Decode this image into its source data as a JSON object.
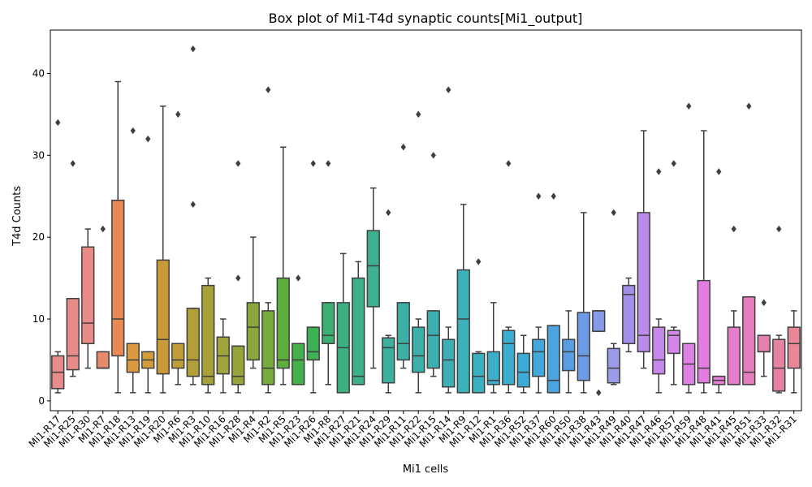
{
  "chart_data": {
    "type": "box",
    "title": "Box plot of Mi1-T4d synaptic counts[Mi1_output]",
    "xlabel": "Mi1 cells",
    "ylabel": "T4d Counts",
    "ylim": [
      -1.2,
      45.3
    ],
    "yticks": [
      0,
      10,
      20,
      30,
      40
    ],
    "grid": false,
    "categories": [
      "Mi1-R17",
      "Mi1-R25",
      "Mi1-R30",
      "Mi1-R7",
      "Mi1-R18",
      "Mi1-R13",
      "Mi1-R19",
      "Mi1-R20",
      "Mi1-R6",
      "Mi1-R3",
      "Mi1-R10",
      "Mi1-R16",
      "Mi1-R28",
      "Mi1-R4",
      "Mi1-R2",
      "Mi1-R5",
      "Mi1-R23",
      "Mi1-R26",
      "Mi1-R8",
      "Mi1-R27",
      "Mi1-R21",
      "Mi1-R24",
      "Mi1-R29",
      "Mi1-R11",
      "Mi1-R22",
      "Mi1-R15",
      "Mi1-R14",
      "Mi1-R9",
      "Mi1-R12",
      "Mi1-R1",
      "Mi1-R36",
      "Mi1-R52",
      "Mi1-R37",
      "Mi1-R60",
      "Mi1-R50",
      "Mi1-R38",
      "Mi1-R43",
      "Mi1-R49",
      "Mi1-R40",
      "Mi1-R47",
      "Mi1-R46",
      "Mi1-R57",
      "Mi1-R59",
      "Mi1-R48",
      "Mi1-R41",
      "Mi1-R45",
      "Mi1-R51",
      "Mi1-R33",
      "Mi1-R32",
      "Mi1-R31"
    ],
    "colors": [
      "#e98b8b",
      "#e88c8a",
      "#e98c87",
      "#e78a6b",
      "#e68a55",
      "#dc9a40",
      "#d29c3a",
      "#c89a3a",
      "#bf9e3a",
      "#b39f37",
      "#a8a138",
      "#a0a43d",
      "#97a43c",
      "#8ba63b",
      "#74ab3b",
      "#5dae3b",
      "#45b14d",
      "#3eb055",
      "#3cb072",
      "#3bb081",
      "#3bb089",
      "#3cb091",
      "#3cb09c",
      "#3cb0a4",
      "#3cb0aa",
      "#3cb0b0",
      "#3cb0b5",
      "#3cb0bb",
      "#3cb0c0",
      "#3cafc8",
      "#3cadcf",
      "#3cabd5",
      "#42a8db",
      "#4ba3df",
      "#579ee3",
      "#6e9be6",
      "#869be8",
      "#9b9be9",
      "#a48ee8",
      "#b98bea",
      "#c689ea",
      "#d286e9",
      "#dd82e4",
      "#e47de2",
      "#e77cd8",
      "#e67ecb",
      "#e57fbb",
      "#e581ae",
      "#e683a1",
      "#e78797"
    ],
    "boxes": [
      {
        "min": 1,
        "q1": 1.5,
        "median": 3.5,
        "q3": 5.5,
        "max": 6,
        "outliers": [
          34
        ]
      },
      {
        "min": 3,
        "q1": 3.8,
        "median": 5.5,
        "q3": 12.5,
        "max": 12.5,
        "outliers": [
          29
        ]
      },
      {
        "min": 4,
        "q1": 7,
        "median": 9.5,
        "q3": 18.8,
        "max": 21,
        "outliers": []
      },
      {
        "min": 4,
        "q1": 4,
        "median": 4,
        "q3": 6,
        "max": 6,
        "outliers": [
          21
        ]
      },
      {
        "min": 1,
        "q1": 5.5,
        "median": 10,
        "q3": 24.5,
        "max": 39,
        "outliers": []
      },
      {
        "min": 1,
        "q1": 3.5,
        "median": 5,
        "q3": 7,
        "max": 7,
        "outliers": [
          33
        ]
      },
      {
        "min": 1,
        "q1": 4,
        "median": 5,
        "q3": 6,
        "max": 6,
        "outliers": [
          32
        ]
      },
      {
        "min": 1,
        "q1": 3.3,
        "median": 7.5,
        "q3": 17.2,
        "max": 36,
        "outliers": []
      },
      {
        "min": 2,
        "q1": 4,
        "median": 5,
        "q3": 7,
        "max": 7,
        "outliers": [
          35
        ]
      },
      {
        "min": 2,
        "q1": 3,
        "median": 5,
        "q3": 11.3,
        "max": 11.3,
        "outliers": [
          43,
          24
        ]
      },
      {
        "min": 1,
        "q1": 2,
        "median": 3,
        "q3": 14.1,
        "max": 15,
        "outliers": []
      },
      {
        "min": 1,
        "q1": 3.3,
        "median": 5.5,
        "q3": 7.8,
        "max": 10,
        "outliers": []
      },
      {
        "min": 1,
        "q1": 2,
        "median": 3,
        "q3": 6.7,
        "max": 6.7,
        "outliers": [
          29,
          15
        ]
      },
      {
        "min": 4,
        "q1": 5,
        "median": 9,
        "q3": 12,
        "max": 20,
        "outliers": []
      },
      {
        "min": 1,
        "q1": 2,
        "median": 4,
        "q3": 11,
        "max": 12,
        "outliers": [
          38
        ]
      },
      {
        "min": 2,
        "q1": 4,
        "median": 5,
        "q3": 15,
        "max": 31,
        "outliers": []
      },
      {
        "min": 2,
        "q1": 2,
        "median": 5,
        "q3": 7,
        "max": 7,
        "outliers": [
          15
        ]
      },
      {
        "min": 1,
        "q1": 5,
        "median": 6,
        "q3": 9,
        "max": 9,
        "outliers": [
          29
        ]
      },
      {
        "min": 2,
        "q1": 7,
        "median": 8,
        "q3": 12,
        "max": 12,
        "outliers": [
          29
        ]
      },
      {
        "min": 1,
        "q1": 1,
        "median": 6.5,
        "q3": 12,
        "max": 18,
        "outliers": []
      },
      {
        "min": 2,
        "q1": 2,
        "median": 3,
        "q3": 15,
        "max": 17,
        "outliers": []
      },
      {
        "min": 4,
        "q1": 11.5,
        "median": 16.5,
        "q3": 20.8,
        "max": 26,
        "outliers": []
      },
      {
        "min": 1,
        "q1": 2.2,
        "median": 6.5,
        "q3": 7.7,
        "max": 8,
        "outliers": [
          23
        ]
      },
      {
        "min": 4,
        "q1": 5,
        "median": 7,
        "q3": 12,
        "max": 12,
        "outliers": [
          31
        ]
      },
      {
        "min": 1,
        "q1": 3.5,
        "median": 5.5,
        "q3": 9,
        "max": 10,
        "outliers": [
          35
        ]
      },
      {
        "min": 3,
        "q1": 4,
        "median": 8,
        "q3": 11,
        "max": 11,
        "outliers": [
          30
        ]
      },
      {
        "min": 1,
        "q1": 1.7,
        "median": 5,
        "q3": 7.5,
        "max": 9,
        "outliers": [
          38
        ]
      },
      {
        "min": 1,
        "q1": 1,
        "median": 10,
        "q3": 16,
        "max": 24,
        "outliers": []
      },
      {
        "min": 1,
        "q1": 1,
        "median": 3,
        "q3": 5.8,
        "max": 6,
        "outliers": [
          17
        ]
      },
      {
        "min": 1,
        "q1": 2,
        "median": 2.5,
        "q3": 6,
        "max": 12,
        "outliers": []
      },
      {
        "min": 1,
        "q1": 2,
        "median": 7,
        "q3": 8.6,
        "max": 9,
        "outliers": [
          29
        ]
      },
      {
        "min": 1,
        "q1": 1.7,
        "median": 3.5,
        "q3": 5.8,
        "max": 8,
        "outliers": []
      },
      {
        "min": 1,
        "q1": 3,
        "median": 6,
        "q3": 7.5,
        "max": 9,
        "outliers": [
          25
        ]
      },
      {
        "min": 1,
        "q1": 1,
        "median": 2.5,
        "q3": 9.2,
        "max": 9.2,
        "outliers": [
          25
        ]
      },
      {
        "min": 1,
        "q1": 3.7,
        "median": 6,
        "q3": 7.5,
        "max": 11,
        "outliers": []
      },
      {
        "min": 1,
        "q1": 2.5,
        "median": 5.5,
        "q3": 10.8,
        "max": 23,
        "outliers": []
      },
      {
        "min": 8.5,
        "q1": 8.5,
        "median": 11,
        "q3": 11,
        "max": 11,
        "outliers": [
          1
        ]
      },
      {
        "min": 2,
        "q1": 2.2,
        "median": 4,
        "q3": 6.4,
        "max": 7,
        "outliers": [
          23
        ]
      },
      {
        "min": 6,
        "q1": 7,
        "median": 13,
        "q3": 14.1,
        "max": 15,
        "outliers": []
      },
      {
        "min": 4,
        "q1": 6,
        "median": 8,
        "q3": 23,
        "max": 33,
        "outliers": []
      },
      {
        "min": 1,
        "q1": 3.3,
        "median": 5,
        "q3": 9,
        "max": 10,
        "outliers": [
          28
        ]
      },
      {
        "min": 2,
        "q1": 5.8,
        "median": 8,
        "q3": 8.6,
        "max": 9,
        "outliers": [
          29
        ]
      },
      {
        "min": 1,
        "q1": 2,
        "median": 4.5,
        "q3": 7,
        "max": 7,
        "outliers": [
          36
        ]
      },
      {
        "min": 1,
        "q1": 2.2,
        "median": 4,
        "q3": 14.7,
        "max": 33,
        "outliers": []
      },
      {
        "min": 1,
        "q1": 2,
        "median": 2.5,
        "q3": 3,
        "max": 3,
        "outliers": [
          28
        ]
      },
      {
        "min": 2,
        "q1": 2,
        "median": 2,
        "q3": 9,
        "max": 11,
        "outliers": [
          21
        ]
      },
      {
        "min": 2,
        "q1": 2,
        "median": 3.5,
        "q3": 12.7,
        "max": 12.7,
        "outliers": [
          36
        ]
      },
      {
        "min": 3,
        "q1": 6,
        "median": 6,
        "q3": 8,
        "max": 8,
        "outliers": [
          12
        ]
      },
      {
        "min": 1,
        "q1": 1.2,
        "median": 4,
        "q3": 7.5,
        "max": 8,
        "outliers": [
          21
        ]
      },
      {
        "min": 1,
        "q1": 4,
        "median": 7,
        "q3": 9,
        "max": 11,
        "outliers": []
      }
    ]
  }
}
